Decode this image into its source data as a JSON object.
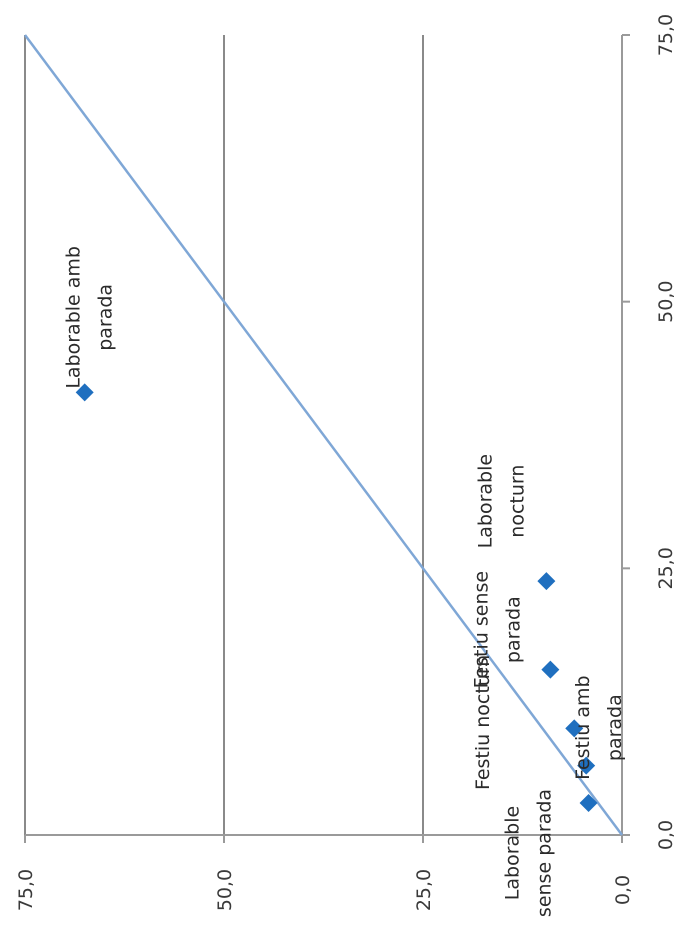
{
  "chart_data": {
    "type": "scatter",
    "title": "",
    "xlabel": "",
    "ylabel": "",
    "xlim": [
      0,
      75
    ],
    "ylim": [
      0,
      75
    ],
    "x_ticks": [
      "0,0",
      "25,0",
      "50,0",
      "75,0"
    ],
    "y_ticks": [
      "0,0",
      "25,0",
      "50,0",
      "75,0"
    ],
    "grid": "horizontal gridlines at each y tick",
    "reference_line": {
      "from": [
        0,
        0
      ],
      "to": [
        75,
        75
      ],
      "color": "#7fa7d6"
    },
    "marker_color": "#1f6fbf",
    "points": [
      {
        "label": "Laborable amb parada",
        "x": 41.5,
        "y": 67.5
      },
      {
        "label": "Laborable nocturn",
        "x": 23.8,
        "y": 9.5
      },
      {
        "label": "Festiu sense parada",
        "x": 15.5,
        "y": 9.0
      },
      {
        "label": "Festiu nocturn",
        "x": 10.0,
        "y": 6.0
      },
      {
        "label": "Festiu amb parada",
        "x": 6.5,
        "y": 4.5
      },
      {
        "label": "Laborable sense parada",
        "x": 3.0,
        "y": 4.2
      }
    ]
  }
}
